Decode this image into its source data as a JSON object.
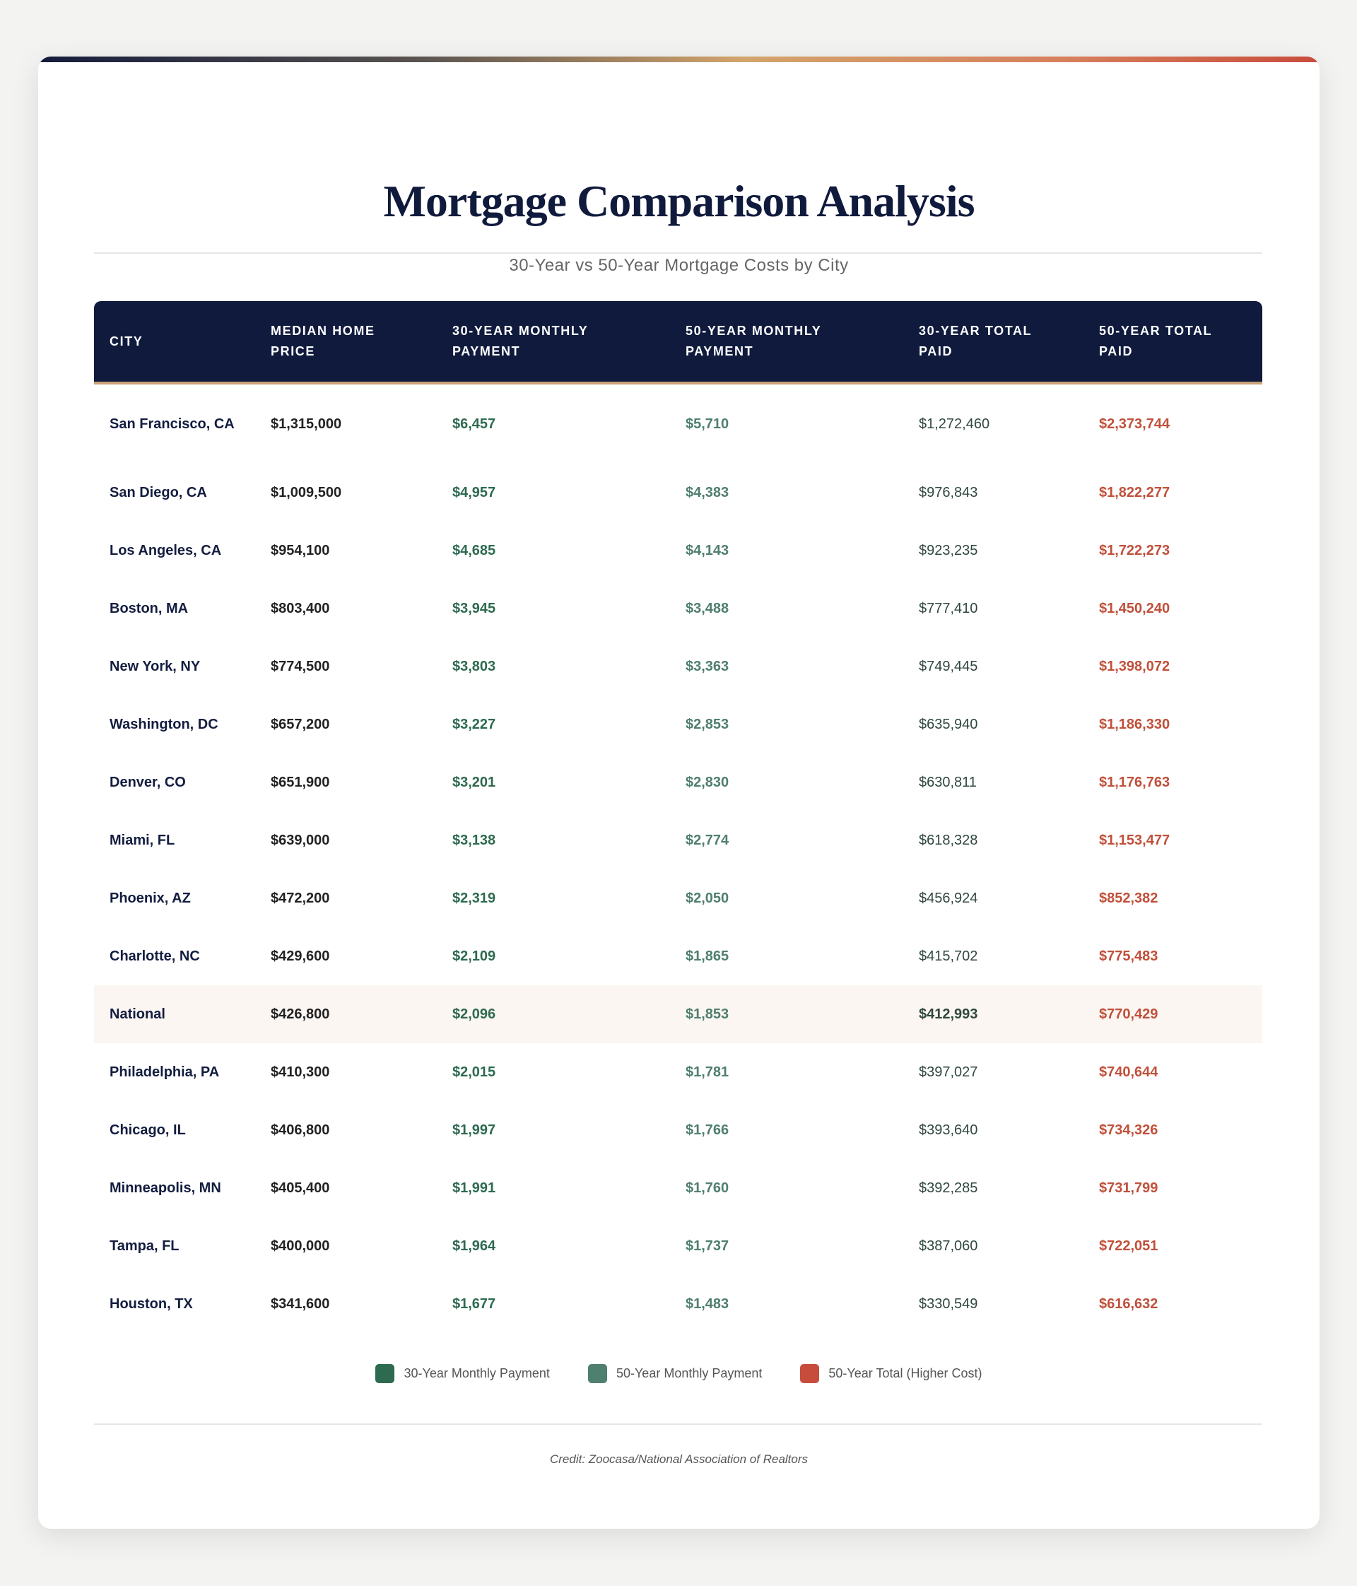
{
  "title": "Mortgage Comparison Analysis",
  "subtitle": "30-Year vs 50-Year Mortgage Costs by City",
  "colors": {
    "navy": "#0f1a3d",
    "accent_gold": "#c9a27a",
    "green_30yr": "#2d6a4f",
    "green_50yr": "#4f7f6e",
    "red_higher_cost": "#c0503a"
  },
  "table": {
    "headers": [
      "CITY",
      "MEDIAN HOME PRICE",
      "30-YEAR MONTHLY PAYMENT",
      "50-YEAR MONTHLY PAYMENT",
      "30-YEAR TOTAL PAID",
      "50-YEAR TOTAL PAID"
    ],
    "rows": [
      [
        "San Francisco, CA",
        "$1,315,000",
        "$6,457",
        "$5,710",
        "$1,272,460",
        "$2,373,744"
      ],
      [
        "San Diego, CA",
        "$1,009,500",
        "$4,957",
        "$4,383",
        "$976,843",
        "$1,822,277"
      ],
      [
        "Los Angeles, CA",
        "$954,100",
        "$4,685",
        "$4,143",
        "$923,235",
        "$1,722,273"
      ],
      [
        "Boston, MA",
        "$803,400",
        "$3,945",
        "$3,488",
        "$777,410",
        "$1,450,240"
      ],
      [
        "New York, NY",
        "$774,500",
        "$3,803",
        "$3,363",
        "$749,445",
        "$1,398,072"
      ],
      [
        "Washington, DC",
        "$657,200",
        "$3,227",
        "$2,853",
        "$635,940",
        "$1,186,330"
      ],
      [
        "Denver, CO",
        "$651,900",
        "$3,201",
        "$2,830",
        "$630,811",
        "$1,176,763"
      ],
      [
        "Miami, FL",
        "$639,000",
        "$3,138",
        "$2,774",
        "$618,328",
        "$1,153,477"
      ],
      [
        "Phoenix, AZ",
        "$472,200",
        "$2,319",
        "$2,050",
        "$456,924",
        "$852,382"
      ],
      [
        "Charlotte, NC",
        "$429,600",
        "$2,109",
        "$1,865",
        "$415,702",
        "$775,483"
      ],
      [
        "National",
        "$426,800",
        "$2,096",
        "$1,853",
        "$412,993",
        "$770,429"
      ],
      [
        "Philadelphia, PA",
        "$410,300",
        "$2,015",
        "$1,781",
        "$397,027",
        "$740,644"
      ],
      [
        "Chicago, IL",
        "$406,800",
        "$1,997",
        "$1,766",
        "$393,640",
        "$734,326"
      ],
      [
        "Minneapolis, MN",
        "$405,400",
        "$1,991",
        "$1,760",
        "$392,285",
        "$731,799"
      ],
      [
        "Tampa, FL",
        "$400,000",
        "$1,964",
        "$1,737",
        "$387,060",
        "$722,051"
      ],
      [
        "Houston, TX",
        "$341,600",
        "$1,677",
        "$1,483",
        "$330,549",
        "$616,632"
      ]
    ],
    "highlighted_row": "National"
  },
  "legend": [
    {
      "label": "30-Year Monthly Payment",
      "color": "#2d6a4f"
    },
    {
      "label": "50-Year Monthly Payment",
      "color": "#4f7f6e"
    },
    {
      "label": "50-Year Total (Higher Cost)",
      "color": "#c84c3c"
    }
  ],
  "credit": "Credit: Zoocasa/National Association of Realtors"
}
